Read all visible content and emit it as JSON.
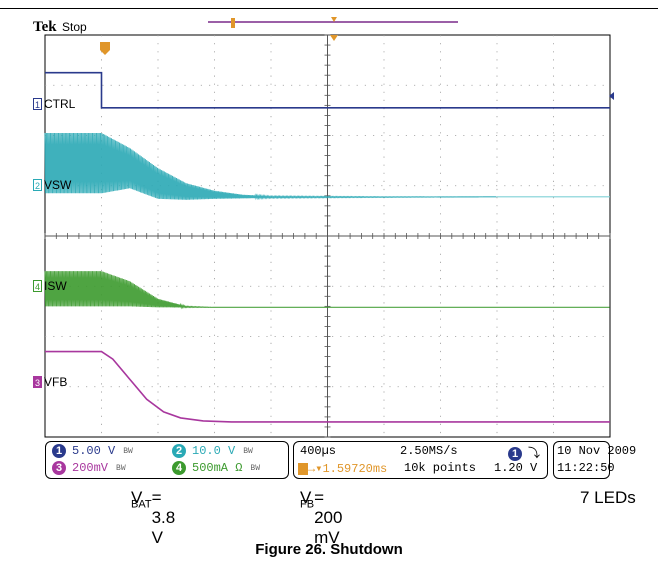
{
  "header": {
    "brand": "Tek",
    "acquisition_state": "Stop"
  },
  "channels": [
    {
      "number": "1",
      "name": "CTRL",
      "color": "#2a3a8c",
      "scale": "5.00 V",
      "coupling": "BW"
    },
    {
      "number": "2",
      "name": "VSW",
      "color": "#2aa9b5",
      "scale": "10.0 V",
      "coupling": "BW"
    },
    {
      "number": "4",
      "name": "ISW",
      "color": "#3c9a2e",
      "scale": "500mA Ω",
      "coupling": "BW"
    },
    {
      "number": "3",
      "name": "VFB",
      "color": "#a8379e",
      "scale": "200mV",
      "coupling": "BW"
    }
  ],
  "timebase": {
    "time_per_div": "400µs",
    "sample_rate": "2.50MS/s",
    "trigger_delay": "1.59720ms",
    "record_length": "10k points"
  },
  "trigger": {
    "source": "1",
    "slope_symbol": "⤵",
    "level": "1.20 V"
  },
  "timestamp": {
    "date": "10 Nov 2009",
    "time": "11:22:50"
  },
  "conditions": {
    "vbat_main": "V",
    "vbat_sub": "BAT",
    "vbat_value": " = 3.8 V",
    "vfb_main": "V",
    "vfb_sub": "FB",
    "vfb_value": " = 200 mV",
    "leds": "7 LEDs"
  },
  "caption": "Figure 26. Shutdown",
  "chart_data": {
    "type": "line",
    "x_unit": "div",
    "x_range": [
      0,
      10
    ],
    "y_range": [
      -4,
      4
    ],
    "trigger_x_div": 1.0,
    "grid": true,
    "series": [
      {
        "name": "CTRL",
        "channel": "1",
        "x": [
          0,
          1.0,
          1.0,
          10
        ],
        "y": [
          3.25,
          3.25,
          2.55,
          2.55
        ]
      },
      {
        "name": "VSW",
        "channel": "2",
        "kind": "switching-envelope",
        "x": [
          0,
          1.0,
          1.5,
          2.0,
          2.5,
          3.0,
          3.5,
          4.0,
          6.0,
          8.0
        ],
        "upper": [
          2.05,
          2.05,
          1.75,
          1.35,
          1.05,
          0.9,
          0.82,
          0.79,
          0.78,
          0.78
        ],
        "lower": [
          0.85,
          0.85,
          0.95,
          0.74,
          0.72,
          0.74,
          0.75,
          0.76,
          0.77,
          0.78
        ]
      },
      {
        "name": "ISW",
        "channel": "4",
        "kind": "switching-envelope",
        "x": [
          0,
          1.0,
          1.5,
          2.0,
          2.5,
          3.0,
          10
        ],
        "upper": [
          -0.7,
          -0.7,
          -0.9,
          -1.25,
          -1.4,
          -1.42,
          -1.42
        ],
        "lower": [
          -1.4,
          -1.4,
          -1.4,
          -1.42,
          -1.42,
          -1.42,
          -1.42
        ]
      },
      {
        "name": "VFB",
        "channel": "3",
        "x": [
          0,
          1.0,
          1.2,
          1.5,
          1.8,
          2.1,
          2.4,
          2.8,
          3.3,
          4.0,
          10
        ],
        "y": [
          -2.3,
          -2.3,
          -2.45,
          -2.85,
          -3.25,
          -3.5,
          -3.62,
          -3.68,
          -3.7,
          -3.7,
          -3.7
        ]
      }
    ]
  }
}
